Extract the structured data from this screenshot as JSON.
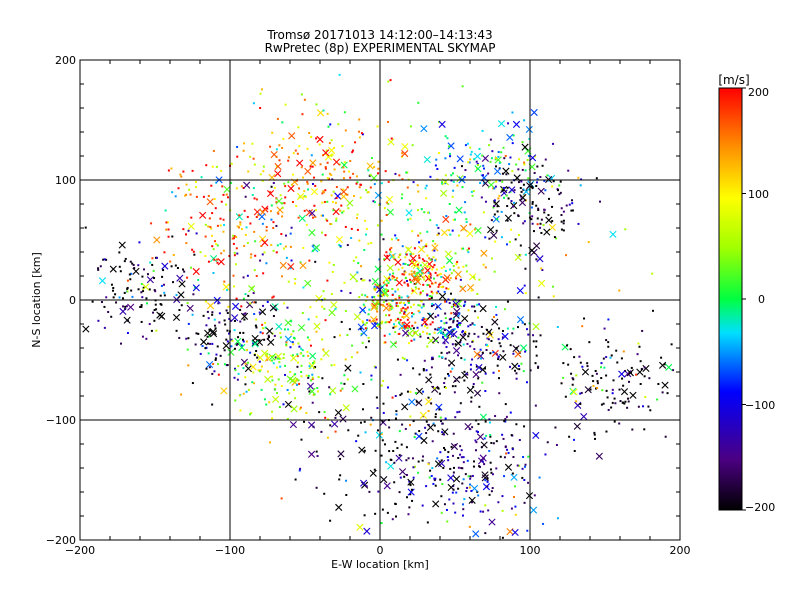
{
  "chart_data": {
    "type": "scatter",
    "title": "Tromsø 20171013 14:12:00–14:13:43",
    "subtitle": "RwPretec (8p) EXPERIMENTAL SKYMAP",
    "xlabel": "E-W location [km]",
    "ylabel": "N-S location [km]",
    "xlim": [
      -200,
      200
    ],
    "ylim": [
      -200,
      200
    ],
    "xticks": [
      "−200",
      "−100",
      "0",
      "100",
      "200"
    ],
    "yticks": [
      "−200",
      "−100",
      "0",
      "100",
      "200"
    ],
    "grid": true,
    "colorbar": {
      "label": "[m/s]",
      "range": [
        -200,
        200
      ],
      "ticks": [
        "200",
        "100",
        "0",
        "−100",
        "−200"
      ],
      "colormap": "rainbow (black → purple → blue → cyan → green → yellow → orange → red)"
    },
    "markers": [
      "dot",
      "cross"
    ],
    "point_count_approx": 2600,
    "clusters": [
      {
        "x": 15,
        "y": -15,
        "spread": 12,
        "velocity": 180
      },
      {
        "x": 5,
        "y": -5,
        "spread": 15,
        "velocity": 30
      },
      {
        "x": 45,
        "y": -20,
        "spread": 10,
        "velocity": -120
      },
      {
        "x": 40,
        "y": 25,
        "spread": 15,
        "velocity": 120
      },
      {
        "x": 20,
        "y": 25,
        "spread": 10,
        "velocity": 190
      },
      {
        "x": -60,
        "y": -60,
        "spread": 20,
        "velocity": 60
      },
      {
        "x": -100,
        "y": 60,
        "spread": 25,
        "velocity": 170
      },
      {
        "x": 155,
        "y": -70,
        "spread": 20,
        "velocity": -200
      },
      {
        "x": 70,
        "y": -40,
        "spread": 20,
        "velocity": -190
      },
      {
        "x": -40,
        "y": 100,
        "spread": 30,
        "velocity": 150
      },
      {
        "x": 70,
        "y": 110,
        "spread": 20,
        "velocity": -50
      },
      {
        "x": 100,
        "y": 80,
        "spread": 20,
        "velocity": -200
      },
      {
        "x": -100,
        "y": -30,
        "spread": 20,
        "velocity": -180
      },
      {
        "x": -160,
        "y": 10,
        "spread": 20,
        "velocity": -200
      },
      {
        "x": 20,
        "y": -110,
        "spread": 40,
        "velocity": -200
      },
      {
        "x": 60,
        "y": -140,
        "spread": 30,
        "velocity": -140
      },
      {
        "x": 0,
        "y": 40,
        "spread": 60,
        "velocity": 40
      }
    ]
  }
}
